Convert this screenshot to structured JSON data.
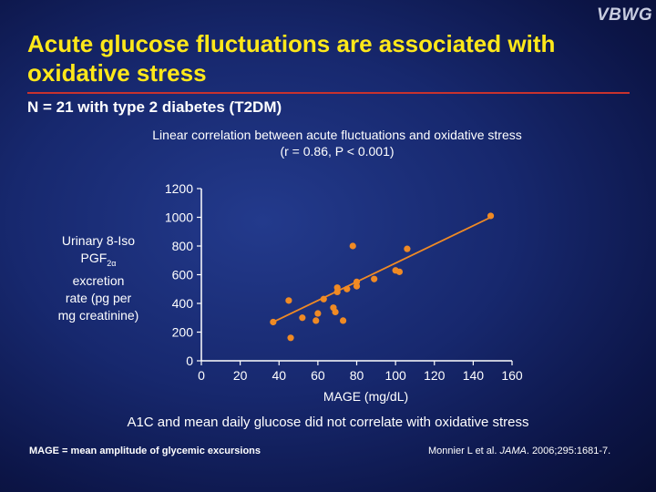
{
  "slide": {
    "logo": "VBWG",
    "title": "Acute glucose fluctuations are associated with oxidative stress",
    "subtitle": "N = 21 with type 2 diabetes (T2DM)",
    "chart_title_line1": "Linear correlation between acute fluctuations and oxidative stress",
    "chart_title_line2": "(r = 0.86, P < 0.001)",
    "ylabel_line1": "Urinary 8-Iso",
    "ylabel_pgf": "PGF",
    "ylabel_sub": "2α",
    "ylabel_line3": "excretion",
    "ylabel_line4": "rate (pg per",
    "ylabel_line5": "mg creatinine)",
    "footer_main": "A1C and mean daily glucose did not correlate with oxidative stress",
    "footnote": "MAGE = mean amplitude of glycemic excursions",
    "citation_authors": "Monnier L et al.",
    "citation_journal": "JAMA",
    "citation_rest": ". 2006;295:1681-7."
  },
  "chart_data": {
    "type": "scatter",
    "xlabel": "MAGE (mg/dL)",
    "ylabel": "Urinary 8-Iso PGF2α excretion rate (pg per mg creatinine)",
    "xlim": [
      0,
      160
    ],
    "ylim": [
      0,
      1200
    ],
    "xticks": [
      0,
      20,
      40,
      60,
      80,
      100,
      120,
      140,
      160
    ],
    "yticks": [
      0,
      200,
      400,
      600,
      800,
      1000,
      1200
    ],
    "points": [
      {
        "x": 37,
        "y": 270
      },
      {
        "x": 45,
        "y": 420
      },
      {
        "x": 46,
        "y": 160
      },
      {
        "x": 52,
        "y": 300
      },
      {
        "x": 59,
        "y": 280
      },
      {
        "x": 60,
        "y": 330
      },
      {
        "x": 63,
        "y": 430
      },
      {
        "x": 68,
        "y": 370
      },
      {
        "x": 69,
        "y": 340
      },
      {
        "x": 70,
        "y": 510
      },
      {
        "x": 70,
        "y": 480
      },
      {
        "x": 73,
        "y": 280
      },
      {
        "x": 75,
        "y": 500
      },
      {
        "x": 78,
        "y": 800
      },
      {
        "x": 80,
        "y": 550
      },
      {
        "x": 80,
        "y": 520
      },
      {
        "x": 89,
        "y": 570
      },
      {
        "x": 100,
        "y": 630
      },
      {
        "x": 102,
        "y": 620
      },
      {
        "x": 106,
        "y": 780
      },
      {
        "x": 149,
        "y": 1010
      }
    ],
    "fit_line": {
      "x": [
        37,
        149
      ],
      "y": [
        270,
        1000
      ]
    },
    "color": "#f08a24",
    "grid": false,
    "legend": "none"
  }
}
